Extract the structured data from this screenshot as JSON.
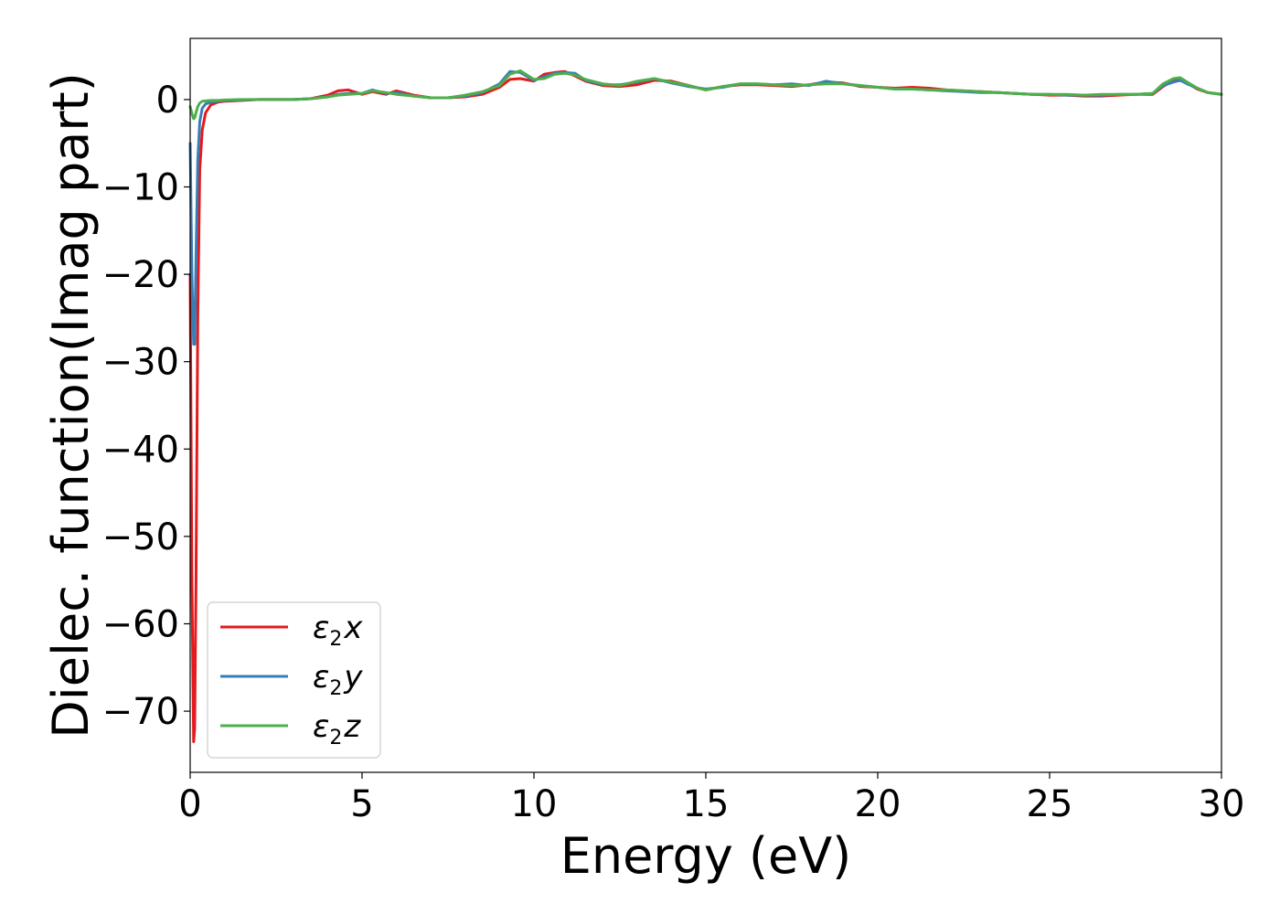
{
  "chart_data": {
    "type": "line",
    "xlabel": "Energy (eV)",
    "ylabel": "Dielec. function(Imag part)",
    "xlim": [
      0,
      30
    ],
    "ylim": [
      -77,
      7
    ],
    "xticks": [
      0,
      5,
      10,
      15,
      20,
      25,
      30
    ],
    "yticks": [
      0,
      -10,
      -20,
      -30,
      -40,
      -50,
      -60,
      -70
    ],
    "xtick_labels": [
      "0",
      "5",
      "10",
      "15",
      "20",
      "25",
      "30"
    ],
    "ytick_labels": [
      "0",
      "−10",
      "−20",
      "−30",
      "−40",
      "−50",
      "−60",
      "−70"
    ],
    "grid": false,
    "legend_position": "lower-left",
    "series": [
      {
        "name": "ε₂x",
        "legend_main": "ε",
        "legend_sub": "2",
        "legend_var": "x",
        "color": "#e41a1c",
        "x": [
          0.0,
          0.05,
          0.1,
          0.13,
          0.17,
          0.22,
          0.28,
          0.35,
          0.45,
          0.6,
          0.8,
          1.0,
          1.5,
          2.0,
          3.0,
          3.5,
          4.0,
          4.3,
          4.6,
          5.0,
          5.3,
          5.7,
          6.0,
          6.5,
          7.0,
          7.5,
          8.0,
          8.5,
          9.0,
          9.3,
          9.6,
          10.0,
          10.3,
          10.6,
          10.9,
          11.2,
          11.5,
          12.0,
          12.5,
          13.0,
          13.5,
          14.0,
          14.5,
          15.0,
          15.5,
          16.0,
          16.5,
          17.0,
          17.5,
          18.0,
          18.5,
          19.0,
          19.5,
          20.0,
          20.5,
          21.0,
          21.5,
          22.0,
          22.5,
          23.0,
          23.5,
          24.0,
          24.5,
          25.0,
          25.5,
          26.0,
          26.5,
          27.0,
          27.5,
          28.0,
          28.3,
          28.6,
          28.8,
          29.0,
          29.3,
          29.6,
          30.0
        ],
        "y": [
          -20,
          -55,
          -73.5,
          -72,
          -55,
          -25,
          -8,
          -3.5,
          -1.5,
          -0.6,
          -0.3,
          -0.2,
          -0.1,
          0.0,
          0.0,
          0.1,
          0.5,
          1.0,
          1.1,
          0.6,
          0.9,
          0.6,
          1.0,
          0.5,
          0.2,
          0.2,
          0.3,
          0.6,
          1.4,
          2.3,
          2.4,
          2.1,
          2.9,
          3.1,
          3.2,
          2.7,
          2.1,
          1.6,
          1.5,
          1.7,
          2.2,
          2.1,
          1.6,
          1.1,
          1.5,
          1.7,
          1.7,
          1.6,
          1.5,
          1.7,
          2.0,
          1.9,
          1.5,
          1.4,
          1.3,
          1.4,
          1.3,
          1.1,
          1.0,
          0.9,
          0.8,
          0.7,
          0.6,
          0.5,
          0.5,
          0.4,
          0.4,
          0.5,
          0.6,
          0.6,
          1.5,
          2.2,
          2.4,
          1.9,
          1.2,
          0.8,
          0.6
        ]
      },
      {
        "name": "ε₂y",
        "legend_main": "ε",
        "legend_sub": "2",
        "legend_var": "y",
        "color": "#377eb8",
        "x": [
          0.0,
          0.05,
          0.1,
          0.13,
          0.17,
          0.22,
          0.28,
          0.35,
          0.45,
          0.6,
          0.8,
          1.0,
          1.5,
          2.0,
          3.0,
          3.5,
          4.0,
          4.3,
          4.6,
          5.0,
          5.3,
          5.7,
          6.0,
          6.5,
          7.0,
          7.5,
          8.0,
          8.5,
          9.0,
          9.3,
          9.6,
          10.0,
          10.3,
          10.6,
          10.9,
          11.2,
          11.5,
          12.0,
          12.5,
          13.0,
          13.5,
          14.0,
          14.5,
          15.0,
          15.5,
          16.0,
          16.5,
          17.0,
          17.5,
          18.0,
          18.5,
          19.0,
          19.5,
          20.0,
          20.5,
          21.0,
          21.5,
          22.0,
          22.5,
          23.0,
          23.5,
          24.0,
          24.5,
          25.0,
          25.5,
          26.0,
          26.5,
          27.0,
          27.5,
          28.0,
          28.3,
          28.6,
          28.8,
          29.0,
          29.3,
          29.6,
          30.0
        ],
        "y": [
          -5,
          -20,
          -28,
          -28,
          -18,
          -7,
          -2.5,
          -1.0,
          -0.5,
          -0.3,
          -0.2,
          -0.1,
          -0.05,
          0.0,
          0.0,
          0.1,
          0.3,
          0.6,
          0.7,
          0.7,
          1.1,
          0.7,
          0.8,
          0.4,
          0.2,
          0.2,
          0.4,
          0.8,
          1.8,
          3.2,
          3.1,
          2.2,
          2.6,
          3.0,
          3.1,
          3.0,
          2.2,
          1.7,
          1.7,
          2.0,
          2.4,
          1.9,
          1.5,
          1.2,
          1.4,
          1.8,
          1.8,
          1.7,
          1.8,
          1.6,
          2.1,
          1.8,
          1.6,
          1.4,
          1.2,
          1.2,
          1.1,
          1.0,
          0.9,
          0.8,
          0.8,
          0.7,
          0.6,
          0.6,
          0.5,
          0.5,
          0.5,
          0.6,
          0.6,
          0.7,
          1.6,
          2.0,
          2.2,
          1.8,
          1.3,
          0.8,
          0.6
        ]
      },
      {
        "name": "ε₂z",
        "legend_main": "ε",
        "legend_sub": "2",
        "legend_var": "z",
        "color": "#4daf4a",
        "x": [
          0.0,
          0.05,
          0.1,
          0.13,
          0.17,
          0.22,
          0.28,
          0.35,
          0.45,
          0.6,
          0.8,
          1.0,
          1.5,
          2.0,
          3.0,
          3.5,
          4.0,
          4.3,
          4.6,
          5.0,
          5.3,
          5.7,
          6.0,
          6.5,
          7.0,
          7.5,
          8.0,
          8.5,
          9.0,
          9.3,
          9.6,
          10.0,
          10.3,
          10.6,
          10.9,
          11.2,
          11.5,
          12.0,
          12.5,
          13.0,
          13.5,
          14.0,
          14.5,
          15.0,
          15.5,
          16.0,
          16.5,
          17.0,
          17.5,
          18.0,
          18.5,
          19.0,
          19.5,
          20.0,
          20.5,
          21.0,
          21.5,
          22.0,
          22.5,
          23.0,
          23.5,
          24.0,
          24.5,
          25.0,
          25.5,
          26.0,
          26.5,
          27.0,
          27.5,
          28.0,
          28.3,
          28.6,
          28.8,
          29.0,
          29.3,
          29.6,
          30.0
        ],
        "y": [
          -0.8,
          -1.6,
          -2.2,
          -2.1,
          -1.5,
          -0.8,
          -0.4,
          -0.2,
          -0.15,
          -0.1,
          -0.1,
          -0.05,
          0.0,
          0.0,
          0.0,
          0.1,
          0.3,
          0.5,
          0.6,
          0.7,
          1.0,
          0.8,
          0.6,
          0.4,
          0.2,
          0.2,
          0.5,
          0.9,
          1.6,
          2.9,
          3.3,
          2.3,
          2.4,
          2.9,
          3.0,
          2.8,
          2.3,
          1.8,
          1.6,
          2.1,
          2.4,
          2.0,
          1.6,
          1.1,
          1.5,
          1.8,
          1.8,
          1.7,
          1.6,
          1.7,
          1.8,
          1.8,
          1.6,
          1.4,
          1.2,
          1.2,
          1.1,
          1.1,
          1.0,
          0.9,
          0.8,
          0.7,
          0.6,
          0.6,
          0.6,
          0.5,
          0.6,
          0.6,
          0.6,
          0.7,
          1.8,
          2.4,
          2.5,
          2.0,
          1.3,
          0.8,
          0.6
        ]
      }
    ]
  }
}
